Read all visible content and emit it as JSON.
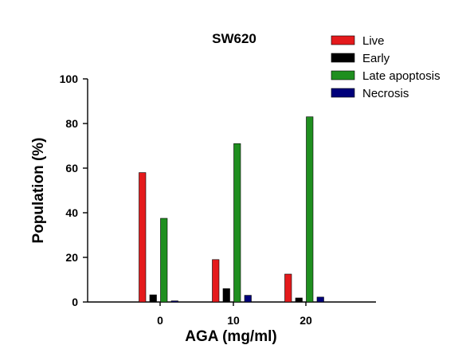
{
  "chart_data": {
    "type": "bar",
    "title": "SW620",
    "xlabel": "AGA (mg/ml)",
    "ylabel": "Population (%)",
    "categories": [
      "0",
      "10",
      "20"
    ],
    "ylim": [
      0,
      100
    ],
    "yticks": [
      "0",
      "20",
      "40",
      "60",
      "80",
      "100"
    ],
    "legend_position": "top-right",
    "grid": false,
    "series": [
      {
        "name": "Live",
        "color": "#e41a1c",
        "values": [
          58,
          19,
          12.5
        ]
      },
      {
        "name": "Early",
        "color": "#000000",
        "values": [
          3.2,
          6,
          1.8
        ]
      },
      {
        "name": "Late apoptosis",
        "color": "#1f8f1f",
        "values": [
          37.5,
          71,
          83
        ]
      },
      {
        "name": "Necrosis",
        "color": "#00007a",
        "values": [
          0.5,
          3,
          2.2
        ]
      }
    ]
  }
}
